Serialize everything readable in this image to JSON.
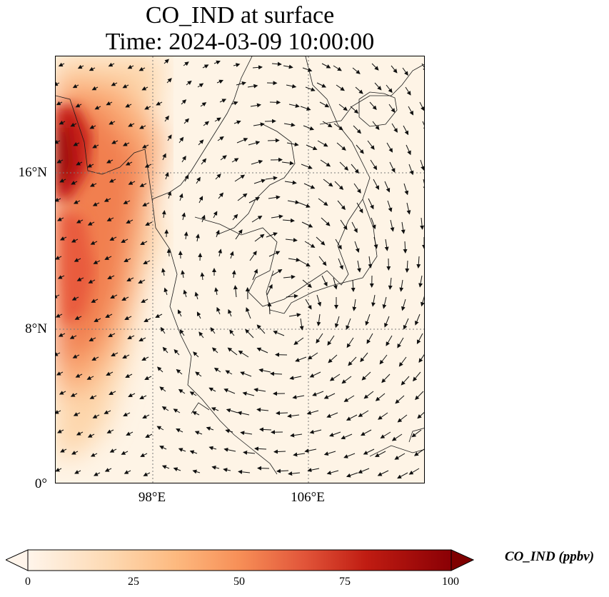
{
  "title": {
    "line1": "CO_IND at surface",
    "line2": "Time: 2024-03-09 10:00:00"
  },
  "map": {
    "y_ticks": [
      "16°N",
      "8°N",
      "0°"
    ],
    "x_ticks": [
      "98°E",
      "106°E"
    ],
    "gridline_color": "#7a7a7a",
    "coastline_color": "#1a1a1a",
    "wind_arrow_color": "#111111"
  },
  "colorbar": {
    "label": "CO_IND (ppbv)",
    "ticks": [
      "0",
      "25",
      "50",
      "75",
      "100"
    ],
    "min": 0,
    "max": 100,
    "colormap": [
      "#fff5eb",
      "#fdd0a2",
      "#fdae6b",
      "#f16913",
      "#d94801",
      "#a50f0d",
      "#7f0000"
    ]
  }
}
